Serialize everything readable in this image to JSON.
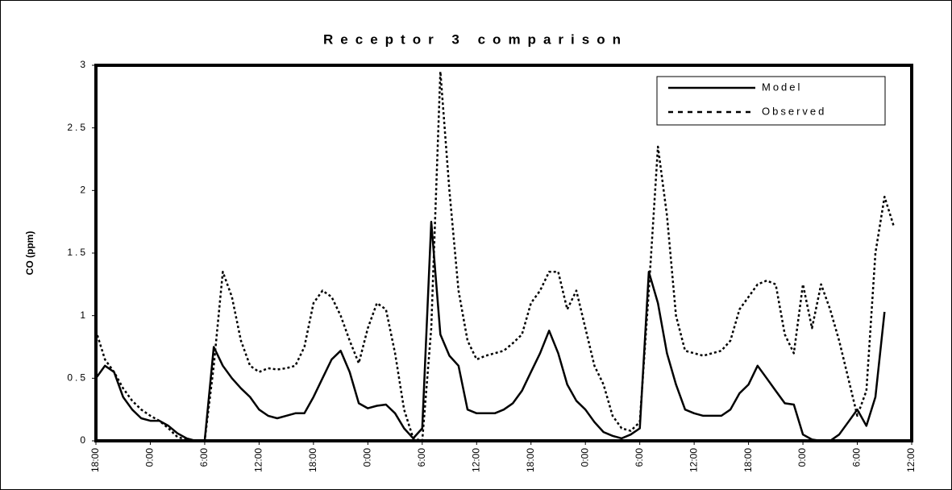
{
  "chart_data": {
    "type": "line",
    "title": "Receptor 3 comparison",
    "y_label": "CO (ppm)",
    "categories": [
      "18:00",
      null,
      null,
      null,
      null,
      null,
      "0:00",
      null,
      null,
      null,
      null,
      null,
      "6:00",
      null,
      null,
      null,
      null,
      null,
      "12:00",
      null,
      null,
      null,
      null,
      null,
      "18:00",
      null,
      null,
      null,
      null,
      null,
      "0:00",
      null,
      null,
      null,
      null,
      null,
      "6:00",
      null,
      null,
      null,
      null,
      null,
      "12:00",
      null,
      null,
      null,
      null,
      null,
      "18:00",
      null,
      null,
      null,
      null,
      null,
      "0:00",
      null,
      null,
      null,
      null,
      null,
      "6:00",
      null,
      null,
      null,
      null,
      null,
      "12:00",
      null,
      null,
      null,
      null,
      null,
      "18:00",
      null,
      null,
      null,
      null,
      null,
      "0:00",
      null,
      null,
      null,
      null,
      null,
      "6:00",
      null,
      null,
      null,
      null,
      null,
      "12:00"
    ],
    "series": [
      {
        "name": "Model",
        "color": "#000000",
        "line_style": "solid",
        "values": [
          0.5,
          0.6,
          0.55,
          0.35,
          0.25,
          0.18,
          0.16,
          0.16,
          0.12,
          0.06,
          0.02,
          0,
          0,
          0.75,
          0.6,
          0.5,
          0.42,
          0.35,
          0.25,
          0.2,
          0.18,
          0.2,
          0.22,
          0.22,
          0.35,
          0.5,
          0.65,
          0.72,
          0.55,
          0.3,
          0.26,
          0.28,
          0.29,
          0.22,
          0.1,
          0.02,
          0.1,
          1.75,
          0.85,
          0.68,
          0.6,
          0.25,
          0.22,
          0.22,
          0.22,
          0.25,
          0.3,
          0.4,
          0.55,
          0.7,
          0.88,
          0.7,
          0.45,
          0.32,
          0.25,
          0.15,
          0.07,
          0.04,
          0.02,
          0.05,
          0.1,
          1.35,
          1.1,
          0.7,
          0.45,
          0.25,
          0.22,
          0.2,
          0.2,
          0.2,
          0.25,
          0.38,
          0.45,
          0.6,
          0.5,
          0.4,
          0.3,
          0.29,
          0.05,
          0.01,
          0,
          0,
          0.05,
          0.15,
          0.25,
          0.12,
          0.35,
          1.03,
          null,
          null,
          null
        ]
      },
      {
        "name": "Observed",
        "color": "#000000",
        "line_style": "dashed",
        "values": [
          0.88,
          0.65,
          0.55,
          0.42,
          0.32,
          0.25,
          0.2,
          0.16,
          0.1,
          0.03,
          0.01,
          0,
          0,
          0.6,
          1.35,
          1.15,
          0.8,
          0.6,
          0.55,
          0.58,
          0.57,
          0.58,
          0.6,
          0.75,
          1.1,
          1.2,
          1.15,
          1.0,
          0.8,
          0.62,
          0.9,
          1.1,
          1.05,
          0.7,
          0.25,
          0.02,
          0,
          0.9,
          2.95,
          2.0,
          1.2,
          0.8,
          0.65,
          0.68,
          0.7,
          0.72,
          0.78,
          0.85,
          1.1,
          1.2,
          1.35,
          1.35,
          1.05,
          1.2,
          0.9,
          0.6,
          0.45,
          0.2,
          0.1,
          0.08,
          0.15,
          1.2,
          2.35,
          1.8,
          1.0,
          0.72,
          0.7,
          0.68,
          0.7,
          0.72,
          0.8,
          1.05,
          1.15,
          1.25,
          1.28,
          1.25,
          0.85,
          0.7,
          1.25,
          0.9,
          1.25,
          1.05,
          0.8,
          0.5,
          0.2,
          0.4,
          1.5,
          1.95,
          1.72,
          null,
          null
        ]
      }
    ],
    "ylim": [
      0,
      3
    ],
    "yticks": [
      0,
      0.5,
      1,
      1.5,
      2,
      2.5,
      3
    ],
    "grid": false,
    "legend": "top-right"
  }
}
